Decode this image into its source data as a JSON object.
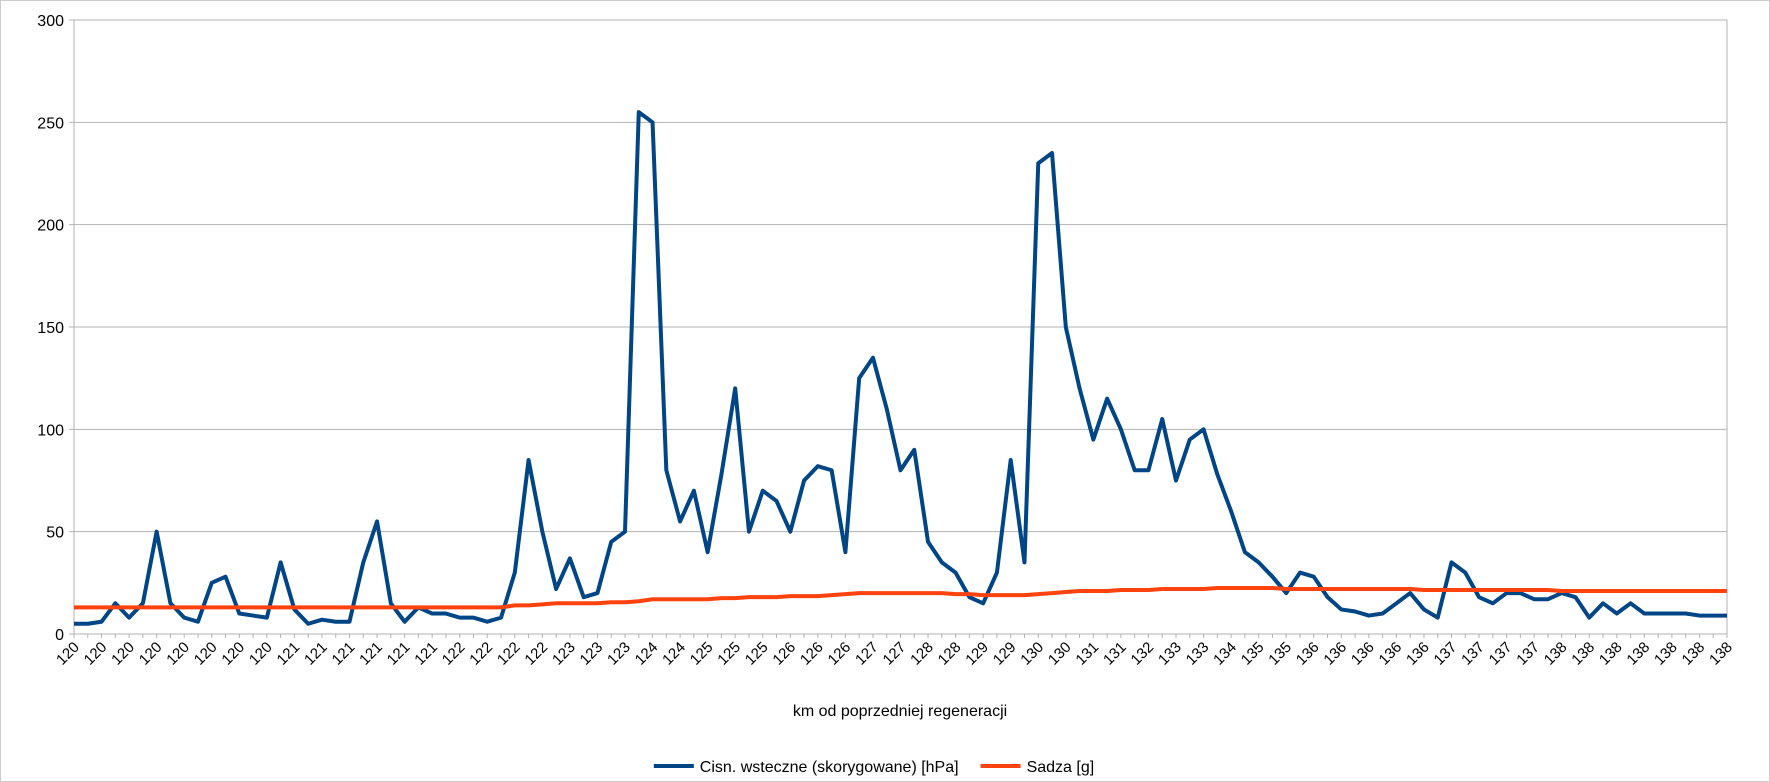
{
  "chart_data": {
    "type": "line",
    "x_label": "km od poprzedniej regeneracji",
    "categories": [
      "120",
      null,
      "120",
      null,
      "120",
      null,
      "120",
      null,
      "120",
      null,
      "120",
      null,
      "120",
      null,
      "120",
      null,
      "121",
      null,
      "121",
      null,
      "121",
      null,
      "121",
      null,
      "121",
      null,
      "121",
      null,
      "122",
      null,
      "122",
      null,
      "122",
      null,
      "122",
      null,
      "123",
      null,
      "123",
      null,
      "123",
      null,
      "124",
      null,
      "124",
      null,
      "125",
      null,
      "125",
      null,
      "125",
      null,
      "126",
      null,
      "126",
      null,
      "126",
      null,
      "127",
      null,
      "127",
      null,
      "128",
      null,
      "128",
      null,
      "129",
      null,
      "129",
      null,
      "130",
      null,
      "130",
      null,
      "131",
      null,
      "131",
      null,
      "132",
      null,
      "133",
      null,
      "133",
      null,
      "134",
      null,
      "135",
      null,
      "135",
      null,
      "136",
      null,
      "136",
      null,
      "136",
      null,
      "136",
      null,
      "136",
      null,
      "137",
      null,
      "137",
      null,
      "137",
      null,
      "137",
      null,
      "138",
      null,
      "138",
      null,
      "138",
      null,
      "138",
      null,
      "138",
      null,
      "138",
      null,
      "138"
    ],
    "series": [
      {
        "name": "Cisn. wsteczne (skorygowane) [hPa]",
        "color": "#004586",
        "values": [
          5,
          5,
          6,
          15,
          8,
          15,
          50,
          15,
          8,
          6,
          25,
          28,
          10,
          9,
          8,
          35,
          12,
          5,
          7,
          6,
          6,
          35,
          55,
          15,
          6,
          13,
          10,
          10,
          8,
          8,
          6,
          8,
          30,
          85,
          50,
          22,
          37,
          18,
          20,
          45,
          50,
          255,
          250,
          80,
          55,
          70,
          40,
          78,
          120,
          50,
          70,
          65,
          50,
          75,
          82,
          80,
          40,
          125,
          135,
          110,
          80,
          90,
          45,
          35,
          30,
          18,
          15,
          30,
          85,
          35,
          230,
          235,
          150,
          120,
          95,
          115,
          100,
          80,
          80,
          105,
          75,
          95,
          100,
          78,
          60,
          40,
          35,
          28,
          20,
          30,
          28,
          18,
          12,
          11,
          9,
          10,
          15,
          20,
          12,
          8,
          35,
          30,
          18,
          15,
          20,
          20,
          17,
          17,
          20,
          18,
          8,
          15,
          10,
          15,
          10,
          10,
          10,
          10,
          9,
          9,
          9
        ]
      },
      {
        "name": "Sadza [g]",
        "color": "#ff420e",
        "values": [
          13,
          13,
          13,
          13,
          13,
          13,
          13,
          13,
          13,
          13,
          13,
          13,
          13,
          13,
          13,
          13,
          13,
          13,
          13,
          13,
          13,
          13,
          13,
          13,
          13,
          13,
          13,
          13,
          13,
          13,
          13,
          13,
          14,
          14,
          14.5,
          15,
          15,
          15,
          15,
          15.5,
          15.5,
          16,
          17,
          17,
          17,
          17,
          17,
          17.5,
          17.5,
          18,
          18,
          18,
          18.5,
          18.5,
          18.5,
          19,
          19.5,
          20,
          20,
          20,
          20,
          20,
          20,
          20,
          19.5,
          19.5,
          19,
          19,
          19,
          19,
          19.5,
          20,
          20.5,
          21,
          21,
          21,
          21.5,
          21.5,
          21.5,
          22,
          22,
          22,
          22,
          22.5,
          22.5,
          22.5,
          22.5,
          22.5,
          22,
          22,
          22,
          22,
          22,
          22,
          22,
          22,
          22,
          22,
          21.5,
          21.5,
          21.5,
          21.5,
          21.5,
          21.5,
          21.5,
          21.5,
          21.5,
          21.5,
          21,
          21,
          21,
          21,
          21,
          21,
          21,
          21,
          21,
          21,
          21,
          21,
          21
        ]
      }
    ],
    "ylim": [
      0,
      300
    ],
    "yticks": [
      0,
      50,
      100,
      150,
      200,
      250,
      300
    ],
    "grid": true,
    "legend": "bottom"
  }
}
